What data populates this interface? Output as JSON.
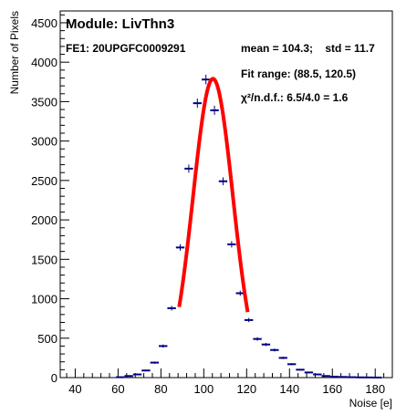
{
  "chart_data": {
    "type": "scatter",
    "title": "Module: LivThn3",
    "subtitle": "FE1: 20UPGFC0009291",
    "xlabel": "Noise [e]",
    "ylabel": "Number of Pixels",
    "xlim": [
      33,
      188
    ],
    "ylim": [
      0,
      4650
    ],
    "xticks": [
      "40",
      "60",
      "80",
      "100",
      "120",
      "140",
      "160",
      "180"
    ],
    "xtick_values": [
      40,
      60,
      80,
      100,
      120,
      140,
      160,
      180
    ],
    "yticks": [
      "0",
      "500",
      "1000",
      "1500",
      "2000",
      "2500",
      "3000",
      "3500",
      "4000",
      "4500"
    ],
    "ytick_values": [
      0,
      500,
      1000,
      1500,
      2000,
      2500,
      3000,
      3500,
      4000,
      4500
    ],
    "grid": false,
    "series": [
      {
        "marker_color": "#000080",
        "bin_width": 4,
        "x": [
          61,
          65,
          69,
          73,
          77,
          81,
          85,
          89,
          93,
          97,
          101,
          105,
          109,
          113,
          117,
          121,
          125,
          129,
          133,
          137,
          141,
          145,
          149,
          153,
          157,
          161,
          165,
          169,
          173,
          177,
          181
        ],
        "values": [
          5,
          20,
          40,
          90,
          190,
          400,
          880,
          1650,
          2650,
          3480,
          3780,
          3390,
          2490,
          1690,
          1070,
          730,
          490,
          420,
          350,
          250,
          170,
          100,
          65,
          40,
          20,
          12,
          8,
          5,
          3,
          2,
          1
        ]
      }
    ],
    "fit": {
      "color": "#ff0000",
      "function": "gaussian",
      "range": [
        88.5,
        120.5
      ],
      "mean": 104.3,
      "sigma": 11.7,
      "amplitude": 3790,
      "sigma_shape": 9.3
    },
    "annotations": {
      "mean_std": "mean = 104.3;    std = 11.7",
      "fit_range": "Fit range: (88.5, 120.5)",
      "chi2": "χ²/n.d.f.: 6.5/4.0 = 1.6"
    }
  }
}
